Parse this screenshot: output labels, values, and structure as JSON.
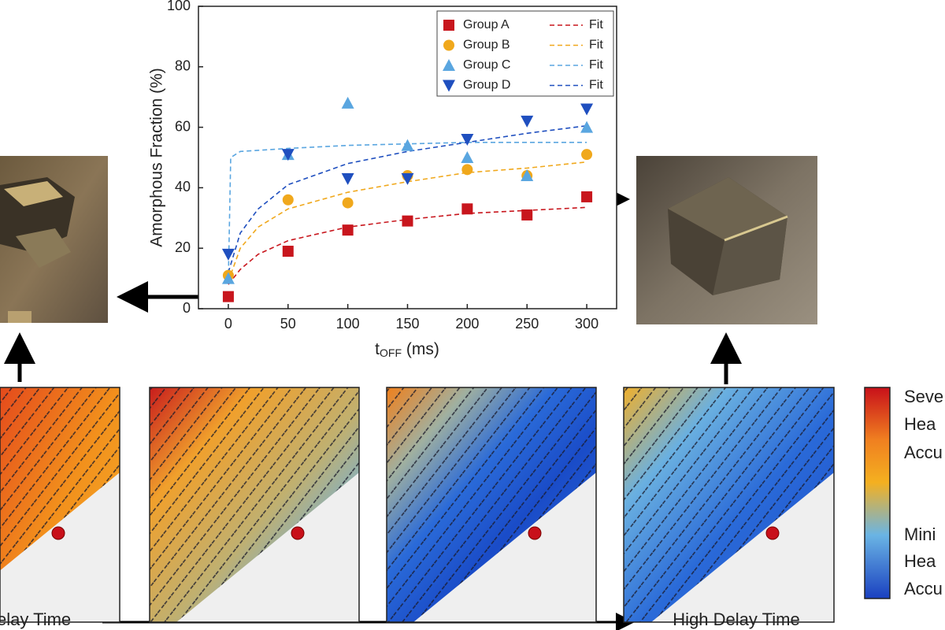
{
  "chart_data": {
    "type": "scatter",
    "x_label": {
      "base": "t",
      "sub": "OFF",
      "rest": " (ms)"
    },
    "y_label": "Amorphous Fraction (%)",
    "x": [
      0,
      50,
      100,
      150,
      200,
      250,
      300
    ],
    "series": [
      {
        "name": "Group A",
        "color": "#c8161d",
        "marker": "square",
        "values": [
          4,
          19,
          26,
          29,
          33,
          31,
          37
        ]
      },
      {
        "name": "Group B",
        "color": "#f0a81c",
        "marker": "circle",
        "values": [
          11,
          36,
          35,
          44,
          46,
          44,
          51
        ]
      },
      {
        "name": "Group C",
        "color": "#5aa6e0",
        "marker": "triangle-up",
        "values": [
          10,
          51,
          68,
          54,
          50,
          44,
          60
        ]
      },
      {
        "name": "Group D",
        "color": "#1f4fbf",
        "marker": "triangle-down",
        "values": [
          18,
          51,
          43,
          43,
          56,
          62,
          66
        ]
      }
    ],
    "fits": [
      {
        "name": "Fit",
        "color": "#c8161d",
        "x": [
          0,
          10,
          25,
          50,
          100,
          150,
          200,
          250,
          300
        ],
        "values": [
          8,
          13,
          18,
          22.5,
          27,
          29.5,
          31.5,
          32.5,
          33.5
        ]
      },
      {
        "name": "Fit",
        "color": "#f0a81c",
        "x": [
          0,
          10,
          25,
          50,
          100,
          150,
          200,
          250,
          300
        ],
        "values": [
          9,
          20,
          27,
          33,
          38.5,
          42,
          45,
          46.5,
          48.5
        ]
      },
      {
        "name": "Fit",
        "color": "#5aa6e0",
        "x": [
          0,
          2,
          10,
          50,
          100,
          200,
          300
        ],
        "values": [
          9,
          50,
          52,
          53,
          54,
          55,
          55
        ]
      },
      {
        "name": "Fit",
        "color": "#1f4fbf",
        "x": [
          0,
          10,
          25,
          50,
          100,
          150,
          200,
          250,
          300
        ],
        "values": [
          12,
          25,
          33,
          41,
          48,
          52,
          55,
          58,
          60.5
        ]
      }
    ],
    "xlim": [
      -25,
      325
    ],
    "xticks": [
      0,
      50,
      100,
      150,
      200,
      250,
      300
    ],
    "ylim": [
      0,
      100
    ],
    "yticks": [
      0,
      20,
      40,
      60,
      80,
      100
    ],
    "grid": false,
    "legend": "upper right"
  },
  "colorbar_labels": [
    "Seve",
    "Hea",
    "Accu",
    "Mini",
    "Hea",
    "Accu"
  ],
  "bottom_labels": [
    "elay Time",
    "High Delay Time"
  ]
}
